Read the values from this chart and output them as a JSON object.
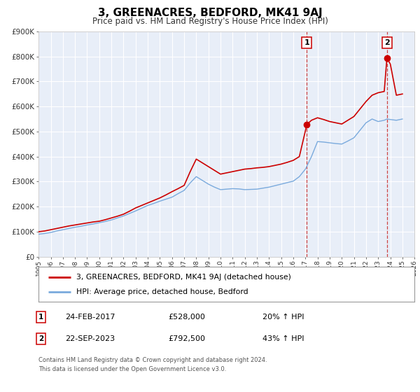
{
  "title": "3, GREENACRES, BEDFORD, MK41 9AJ",
  "subtitle": "Price paid vs. HM Land Registry's House Price Index (HPI)",
  "title_fontsize": 11,
  "subtitle_fontsize": 9,
  "background_color": "#ffffff",
  "plot_bg_color": "#e8eef8",
  "grid_color": "#ffffff",
  "xmin": 1995,
  "xmax": 2026,
  "ymin": 0,
  "ymax": 900000,
  "yticks": [
    0,
    100000,
    200000,
    300000,
    400000,
    500000,
    600000,
    700000,
    800000,
    900000
  ],
  "ytick_labels": [
    "£0",
    "£100K",
    "£200K",
    "£300K",
    "£400K",
    "£500K",
    "£600K",
    "£700K",
    "£800K",
    "£900K"
  ],
  "marker1_x": 2017.12,
  "marker1_y": 528000,
  "marker2_x": 2023.72,
  "marker2_y": 792500,
  "marker1_date": "24-FEB-2017",
  "marker1_price": "£528,000",
  "marker1_hpi": "20% ↑ HPI",
  "marker2_date": "22-SEP-2023",
  "marker2_price": "£792,500",
  "marker2_hpi": "43% ↑ HPI",
  "red_line_color": "#cc0000",
  "blue_line_color": "#7aaadd",
  "marker_dot_color": "#cc0000",
  "vline_color": "#cc4444",
  "legend_label_red": "3, GREENACRES, BEDFORD, MK41 9AJ (detached house)",
  "legend_label_blue": "HPI: Average price, detached house, Bedford",
  "footer_text": "Contains HM Land Registry data © Crown copyright and database right 2024.\nThis data is licensed under the Open Government Licence v3.0.",
  "red_x": [
    1995.0,
    1995.5,
    1996.0,
    1996.5,
    1997.0,
    1997.5,
    1998.0,
    1998.5,
    1999.0,
    1999.5,
    2000.0,
    2000.5,
    2001.0,
    2001.5,
    2002.0,
    2002.5,
    2003.0,
    2003.5,
    2004.0,
    2004.5,
    2005.0,
    2005.5,
    2006.0,
    2006.5,
    2007.0,
    2007.5,
    2008.0,
    2008.5,
    2009.0,
    2009.5,
    2010.0,
    2010.5,
    2011.0,
    2011.5,
    2012.0,
    2012.5,
    2013.0,
    2013.5,
    2014.0,
    2014.5,
    2015.0,
    2015.5,
    2016.0,
    2016.5,
    2017.12,
    2017.5,
    2018.0,
    2018.5,
    2019.0,
    2019.5,
    2020.0,
    2020.5,
    2021.0,
    2021.5,
    2022.0,
    2022.5,
    2023.0,
    2023.5,
    2023.72,
    2024.0,
    2024.5,
    2025.0
  ],
  "red_y": [
    100000,
    103000,
    108000,
    113000,
    118000,
    123000,
    127000,
    131000,
    135000,
    139000,
    142000,
    148000,
    155000,
    162000,
    170000,
    182000,
    195000,
    205000,
    215000,
    225000,
    235000,
    247000,
    260000,
    272000,
    285000,
    340000,
    390000,
    375000,
    360000,
    345000,
    330000,
    335000,
    340000,
    345000,
    350000,
    352000,
    355000,
    357000,
    360000,
    365000,
    370000,
    377000,
    385000,
    400000,
    528000,
    545000,
    555000,
    548000,
    540000,
    535000,
    530000,
    545000,
    560000,
    590000,
    620000,
    645000,
    655000,
    660000,
    792500,
    770000,
    645000,
    650000
  ],
  "blue_x": [
    1995.0,
    1995.5,
    1996.0,
    1996.5,
    1997.0,
    1997.5,
    1998.0,
    1998.5,
    1999.0,
    1999.5,
    2000.0,
    2000.5,
    2001.0,
    2001.5,
    2002.0,
    2002.5,
    2003.0,
    2003.5,
    2004.0,
    2004.5,
    2005.0,
    2005.5,
    2006.0,
    2006.5,
    2007.0,
    2007.5,
    2008.0,
    2008.5,
    2009.0,
    2009.5,
    2010.0,
    2010.5,
    2011.0,
    2011.5,
    2012.0,
    2012.5,
    2013.0,
    2013.5,
    2014.0,
    2014.5,
    2015.0,
    2015.5,
    2016.0,
    2016.5,
    2017.0,
    2017.5,
    2018.0,
    2018.5,
    2019.0,
    2019.5,
    2020.0,
    2020.5,
    2021.0,
    2021.5,
    2022.0,
    2022.5,
    2023.0,
    2023.5,
    2023.72,
    2024.0,
    2024.5,
    2025.0
  ],
  "blue_y": [
    90000,
    93000,
    97000,
    103000,
    108000,
    113000,
    118000,
    122000,
    127000,
    131000,
    136000,
    141000,
    147000,
    155000,
    163000,
    173000,
    183000,
    194000,
    205000,
    213000,
    222000,
    230000,
    238000,
    252000,
    265000,
    295000,
    320000,
    305000,
    290000,
    278000,
    268000,
    270000,
    272000,
    271000,
    268000,
    269000,
    270000,
    274000,
    278000,
    284000,
    290000,
    296000,
    302000,
    320000,
    350000,
    400000,
    460000,
    458000,
    455000,
    452000,
    450000,
    462000,
    475000,
    505000,
    535000,
    550000,
    540000,
    545000,
    550000,
    548000,
    545000,
    550000
  ]
}
